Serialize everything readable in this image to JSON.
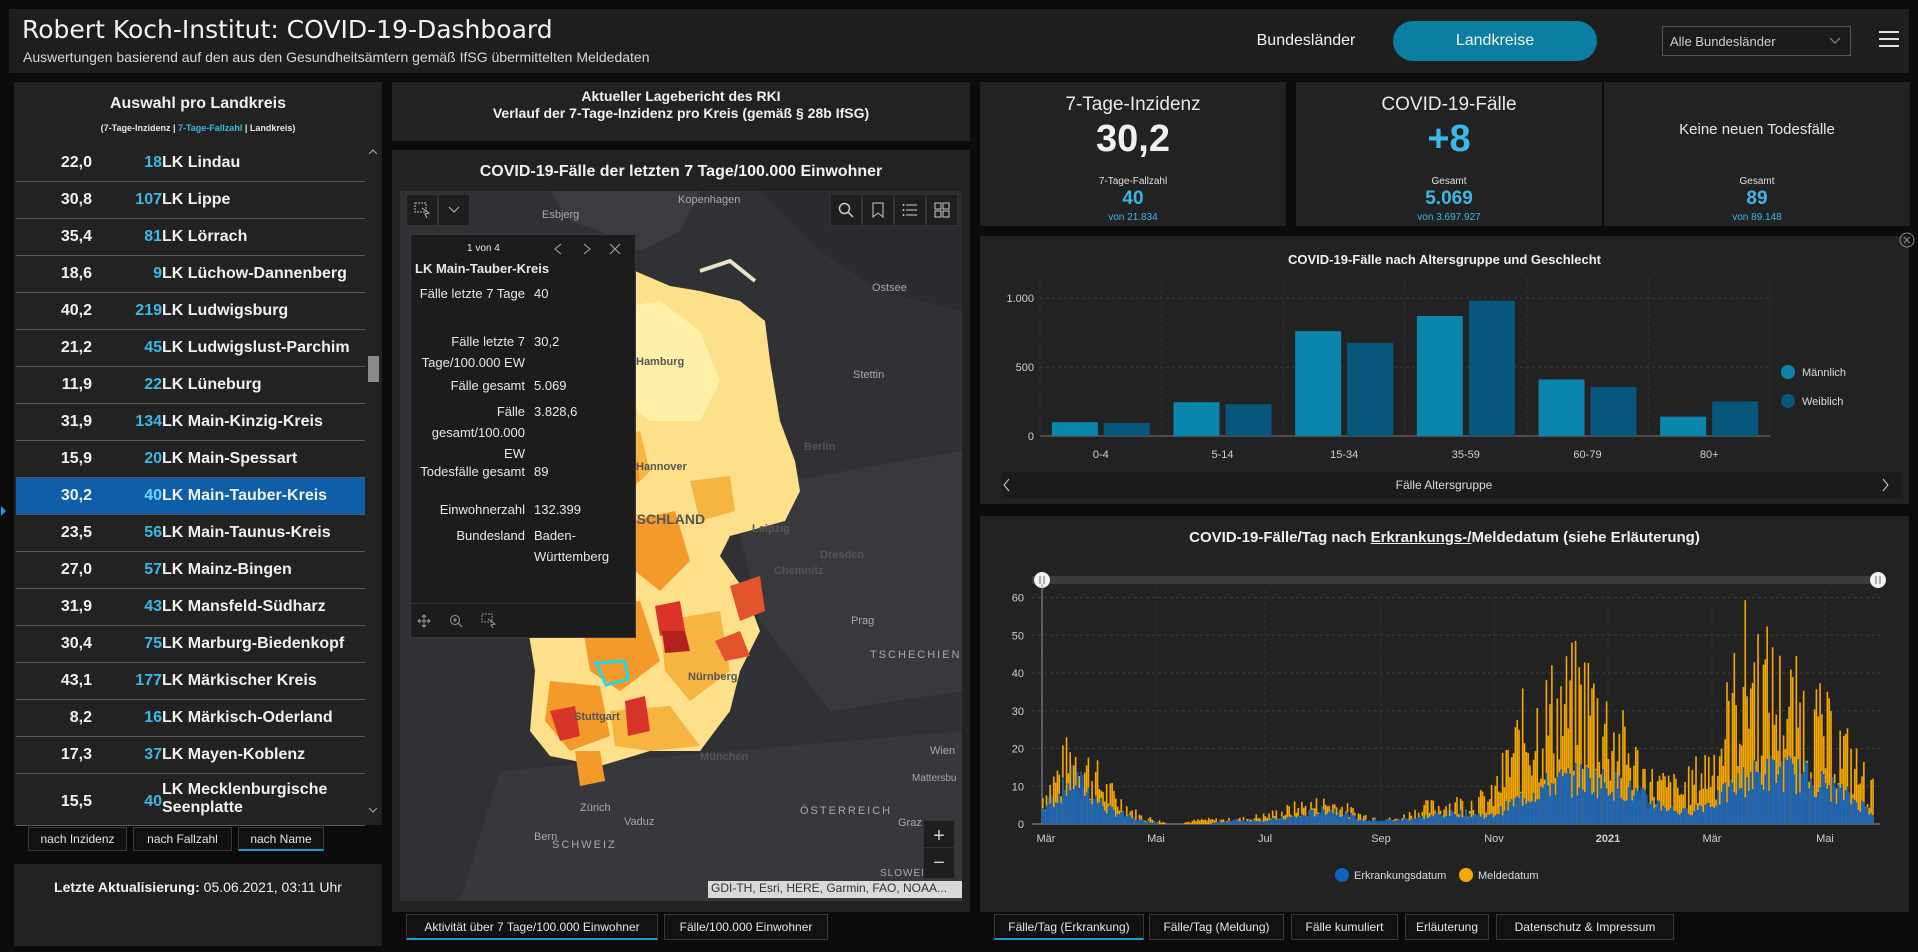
{
  "header": {
    "title": "Robert Koch-Institut: COVID-19-Dashboard",
    "subtitle": "Auswertungen basierend auf den aus den Gesundheitsämtern gemäß IfSG übermittelten Meldedaten",
    "nav_bundeslaender": "Bundesländer",
    "nav_landkreise": "Landkreise",
    "state_select": "Alle Bundesländer",
    "accent": "#0b7ea1"
  },
  "list": {
    "title": "Auswahl pro Landkreis",
    "legend_a": "(7-Tage-Inzidenz | ",
    "legend_b": "7-Tage-Fallzahl",
    "legend_c": " | Landkreis)",
    "rows": [
      {
        "inc": "22,0",
        "cases": "18",
        "name": "LK Lindau"
      },
      {
        "inc": "30,8",
        "cases": "107",
        "name": "LK Lippe"
      },
      {
        "inc": "35,4",
        "cases": "81",
        "name": "LK Lörrach"
      },
      {
        "inc": "18,6",
        "cases": "9",
        "name": "LK Lüchow-Dannenberg"
      },
      {
        "inc": "40,2",
        "cases": "219",
        "name": "LK Ludwigsburg"
      },
      {
        "inc": "21,2",
        "cases": "45",
        "name": "LK Ludwigslust-Parchim"
      },
      {
        "inc": "11,9",
        "cases": "22",
        "name": "LK Lüneburg"
      },
      {
        "inc": "31,9",
        "cases": "134",
        "name": "LK Main-Kinzig-Kreis"
      },
      {
        "inc": "15,9",
        "cases": "20",
        "name": "LK Main-Spessart"
      },
      {
        "inc": "30,2",
        "cases": "40",
        "name": "LK Main-Tauber-Kreis"
      },
      {
        "inc": "23,5",
        "cases": "56",
        "name": "LK Main-Taunus-Kreis"
      },
      {
        "inc": "27,0",
        "cases": "57",
        "name": "LK Mainz-Bingen"
      },
      {
        "inc": "31,9",
        "cases": "43",
        "name": "LK Mansfeld-Südharz"
      },
      {
        "inc": "30,4",
        "cases": "75",
        "name": "LK Marburg-Biedenkopf"
      },
      {
        "inc": "43,1",
        "cases": "177",
        "name": "LK Märkischer Kreis"
      },
      {
        "inc": "8,2",
        "cases": "16",
        "name": "LK Märkisch-Oderland"
      },
      {
        "inc": "17,3",
        "cases": "37",
        "name": "LK Mayen-Koblenz"
      },
      {
        "inc": "15,5",
        "cases": "40",
        "name": "LK Mecklenburgische Seenplatte"
      }
    ],
    "selected_index": 9,
    "sort_tabs": [
      "nach Inzidenz",
      "nach Fallzahl",
      "nach Name"
    ],
    "last_update_label": "Letzte Aktualisierung:",
    "last_update_value": " 05.06.2021, 03:11 Uhr"
  },
  "report": {
    "line1": "Aktueller Lagebericht des RKI",
    "line2": "Verlauf der 7-Tage-Inzidenz pro Kreis (gemäß § 28b IfSG)"
  },
  "map": {
    "title": "COVID-19-Fälle der letzten 7 Tage/100.000 Einwohner",
    "labels": {
      "esbjerg": "Esbjerg",
      "kopenhagen": "Kopenhagen",
      "ostsee": "Ostsee",
      "hamburg": "Hamburg",
      "stettin": "Stettin",
      "berlin": "Berlin",
      "hannover": "Hannover",
      "deutschland": "UTSCHLAND",
      "leipzig": "Leipzig",
      "dresden": "Dresden",
      "chemnitz": "Chemnitz",
      "prag": "Prag",
      "tschechien": "TSCHECHIEN",
      "nuernberg": "Nürnberg",
      "stuttgart": "Stuttgart",
      "muenchen": "München",
      "wien": "Wien",
      "mattersburg": "Mattersbu",
      "oesterreich": "ÖSTERREICH",
      "zuerich": "Zürich",
      "vaduz": "Vaduz",
      "bern": "Bern",
      "schweiz": "SCHWEIZ",
      "graz": "Graz",
      "slowenien": "SLOWENIEN"
    },
    "attribution": "GDI-TH, Esri, HERE, Garmin, FAO, NOAA...",
    "popup": {
      "pager": "1 von 4",
      "heading": "LK Main-Tauber-Kreis",
      "fields": [
        {
          "k": "Fälle letzte 7 Tage",
          "v": "40"
        },
        {
          "k": "Fälle letzte 7 Tage/100.000 EW",
          "v": "30,2"
        },
        {
          "k": "Fälle gesamt",
          "v": "5.069"
        },
        {
          "k": "Fälle gesamt/100.000 EW",
          "v": "3.828,6"
        },
        {
          "k": "Todesfälle gesamt",
          "v": "89"
        },
        {
          "k": "Einwohnerzahl",
          "v": "132.399"
        },
        {
          "k": "Bundesland",
          "v": "Baden-Württemberg"
        }
      ]
    },
    "zoom_in": "+",
    "zoom_out": "−",
    "tabs": [
      "Aktivität über 7 Tage/100.000 Einwohner",
      "Fälle/100.000 Einwohner"
    ]
  },
  "kpis": {
    "incidence": {
      "label": "7-Tage-Inzidenz",
      "value": "30,2",
      "sub_label": "7-Tage-Fallzahl",
      "sub_value": "40",
      "sub_of": "von 21.834"
    },
    "cases": {
      "label": "COVID-19-Fälle",
      "value": "+8",
      "sub_label": "Gesamt",
      "sub_value": "5.069",
      "sub_of": "von 3.697.927"
    },
    "deaths": {
      "label": "Keine neuen Todesfälle",
      "sub_label": "Gesamt",
      "sub_value": "89",
      "sub_of": "von 89.148"
    }
  },
  "age_chart": {
    "title": "COVID-19-Fälle nach Altersgruppe und Geschlecht",
    "xlabel": "Fälle Altersgruppe"
  },
  "day_chart": {
    "title_a": "COVID-19-Fälle/Tag nach ",
    "title_b": "Erkrankungs-/",
    "title_c": "Meldedatum (siehe Erläuterung)",
    "legend": [
      "Erkrankungsdatum",
      "Meldedatum"
    ]
  },
  "bottom_tabs": [
    "Fälle/Tag (Erkrankung)",
    "Fälle/Tag (Meldung)",
    "Fälle kumuliert",
    "Erläuterung",
    "Datenschutz & Impressum"
  ],
  "chart_data": [
    {
      "type": "bar",
      "title": "COVID-19-Fälle nach Altersgruppe und Geschlecht",
      "xlabel": "Fälle Altersgruppe",
      "ylabel": "",
      "categories": [
        "0-4",
        "5-14",
        "15-34",
        "35-59",
        "60-79",
        "80+"
      ],
      "series": [
        {
          "name": "Männlich",
          "color": "#0a86ad",
          "values": [
            100,
            245,
            760,
            870,
            410,
            140
          ]
        },
        {
          "name": "Weiblich",
          "color": "#07577d",
          "values": [
            95,
            230,
            675,
            980,
            355,
            250
          ]
        }
      ],
      "ylim": [
        0,
        1000
      ],
      "yticks": [
        0,
        500,
        1000
      ],
      "ytick_labels": [
        "0",
        "500",
        "1.000"
      ],
      "legend_position": "right",
      "grid": true
    },
    {
      "type": "bar",
      "title": "COVID-19-Fälle/Tag nach Erkrankungs-/Meldedatum (siehe Erläuterung)",
      "xlabel": "",
      "ylabel": "",
      "stacked": false,
      "x_tick_labels": [
        "Mär",
        "Mai",
        "Jul",
        "Sep",
        "Nov",
        "2021",
        "Mär",
        "Mai"
      ],
      "yticks": [
        0,
        10,
        20,
        30,
        40,
        50,
        60
      ],
      "ylim": [
        0,
        62
      ],
      "series": [
        {
          "name": "Erkrankungsdatum",
          "color": "#1262bf",
          "period_values": [
            4,
            12,
            4,
            1,
            0,
            0,
            1,
            1,
            2,
            4,
            1,
            1,
            2,
            3,
            2,
            7,
            11,
            12,
            10,
            6,
            3,
            6,
            12,
            14,
            12,
            8,
            3
          ]
        },
        {
          "name": "Meldedatum",
          "color": "#f5a800",
          "period_values": [
            7,
            17,
            8,
            2,
            0,
            1,
            1,
            2,
            4,
            5,
            2,
            1,
            4,
            5,
            6,
            22,
            28,
            31,
            20,
            10,
            8,
            16,
            38,
            30,
            25,
            18,
            7
          ]
        }
      ],
      "legend_position": "bottom",
      "grid": true
    }
  ]
}
